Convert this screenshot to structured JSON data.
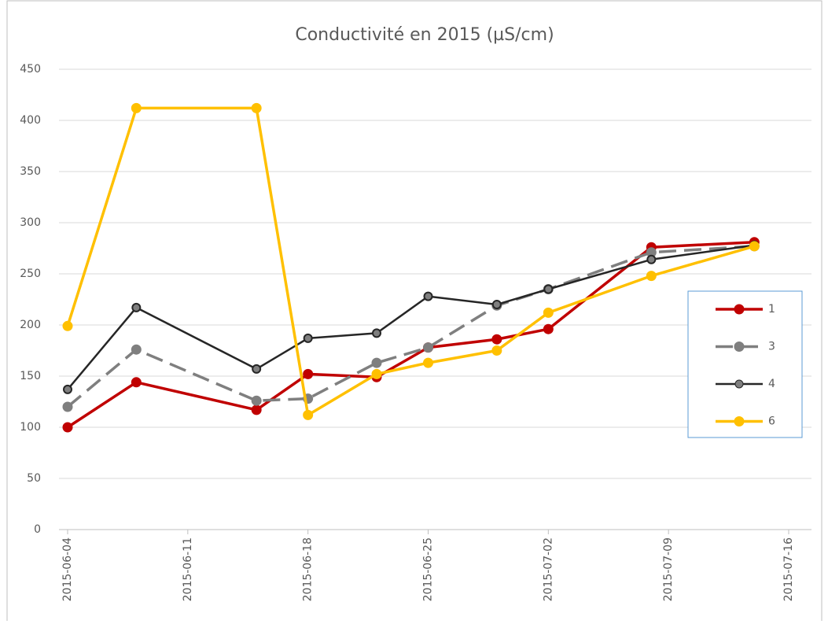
{
  "chart_data": {
    "type": "line",
    "title": "Conductivité en 2015 (µS/cm)",
    "x": [
      "2015-06-04",
      "2015-06-08",
      "2015-06-15",
      "2015-06-18",
      "2015-06-22",
      "2015-06-25",
      "2015-06-29",
      "2015-07-02",
      "2015-07-08",
      "2015-07-14"
    ],
    "xlim": [
      "2015-06-04",
      "2015-07-16"
    ],
    "xticks": [
      "2015-06-04",
      "2015-06-11",
      "2015-06-18",
      "2015-06-25",
      "2015-07-02",
      "2015-07-09",
      "2015-07-16"
    ],
    "ylim": [
      0,
      450
    ],
    "yticks": [
      0,
      50,
      100,
      150,
      200,
      250,
      300,
      350,
      400,
      450
    ],
    "grid": true,
    "legend": "right",
    "series": [
      {
        "name": "1",
        "color": "#c00000",
        "dash": false,
        "values": [
          100,
          144,
          117,
          152,
          149,
          178,
          186,
          196,
          276,
          281
        ]
      },
      {
        "name": "3",
        "color": "#7f7f7f",
        "dash": true,
        "values": [
          120,
          176,
          126,
          128,
          163,
          178,
          219,
          235,
          271,
          277
        ]
      },
      {
        "name": "4",
        "color": "#262626",
        "dash": false,
        "values": [
          137,
          217,
          157,
          187,
          192,
          228,
          220,
          235,
          264,
          278
        ]
      },
      {
        "name": "6",
        "color": "#ffc000",
        "dash": false,
        "values": [
          199,
          412,
          412,
          112,
          152,
          163,
          175,
          212,
          248,
          277
        ]
      }
    ]
  }
}
